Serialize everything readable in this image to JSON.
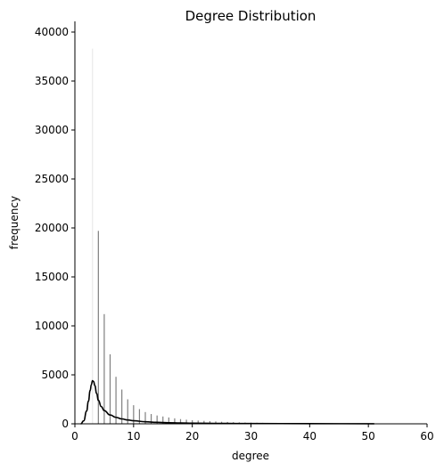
{
  "chart_data": {
    "type": "bar",
    "title": "Degree Distribution",
    "xlabel": "degree",
    "ylabel": "frequency",
    "xlim": [
      0,
      60
    ],
    "ylim": [
      0,
      40000
    ],
    "xticks": [
      0,
      10,
      20,
      30,
      40,
      50,
      60
    ],
    "yticks": [
      0,
      5000,
      10000,
      15000,
      20000,
      25000,
      30000,
      35000,
      40000
    ],
    "grid": false,
    "legend": "none",
    "colors": {
      "bar": "#808080",
      "kde": "#000000"
    },
    "bars": {
      "x": [
        3,
        4,
        5,
        6,
        7,
        8,
        9,
        10,
        11,
        12,
        13,
        14,
        15,
        16,
        17,
        18,
        19,
        20,
        21,
        22,
        23,
        24,
        25,
        26,
        27,
        28,
        29,
        30,
        31,
        32,
        33,
        34,
        35,
        36,
        37,
        38,
        39,
        40,
        41,
        42,
        43,
        44,
        45,
        46,
        47,
        48,
        49,
        50,
        51
      ],
      "values": [
        38300,
        19700,
        11200,
        7100,
        4800,
        3500,
        2500,
        1900,
        1500,
        1200,
        1000,
        850,
        750,
        650,
        560,
        480,
        420,
        370,
        330,
        300,
        270,
        240,
        210,
        190,
        170,
        150,
        130,
        120,
        110,
        100,
        90,
        80,
        70,
        65,
        60,
        55,
        50,
        45,
        40,
        36,
        33,
        30,
        27,
        24,
        22,
        20,
        18,
        16,
        14
      ]
    },
    "kde": {
      "x": [
        1,
        1.5,
        2,
        2.3,
        2.6,
        2.8,
        3.0,
        3.2,
        3.4,
        3.7,
        4.0,
        4.5,
        5.0,
        6.0,
        7.0,
        8.0,
        9.0,
        10.0,
        12.0,
        14.0,
        16.0,
        18.0,
        20.0,
        25.0,
        30.0,
        40.0,
        51.0
      ],
      "y": [
        0,
        300,
        1300,
        2300,
        3400,
        4000,
        4400,
        4300,
        3900,
        3100,
        2400,
        1750,
        1350,
        900,
        660,
        500,
        390,
        310,
        210,
        150,
        110,
        85,
        65,
        40,
        28,
        15,
        5
      ]
    }
  }
}
